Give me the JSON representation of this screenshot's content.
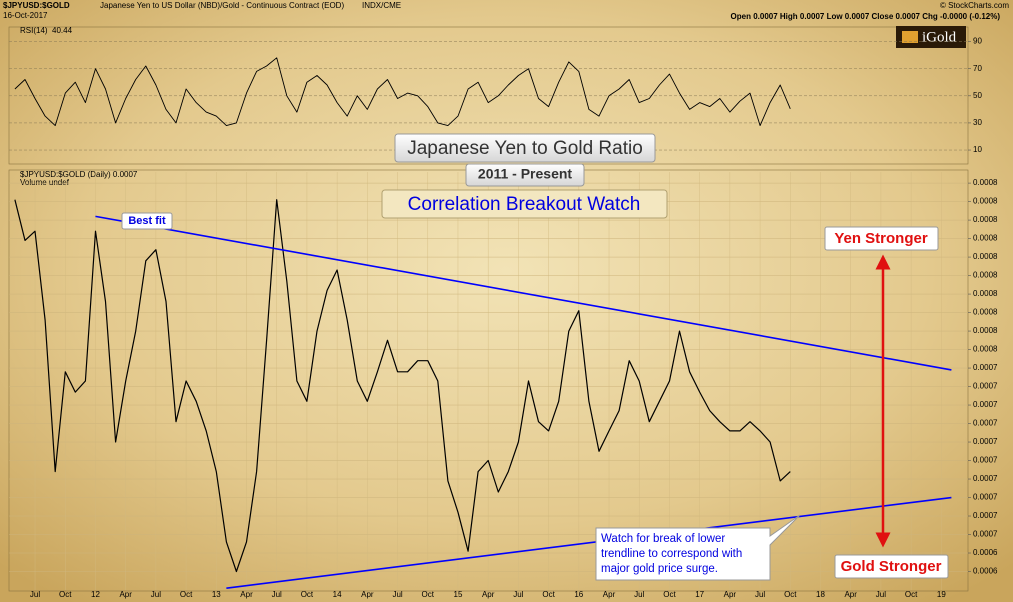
{
  "header": {
    "symbol": "$JPYUSD:$GOLD",
    "description": "Japanese Yen to US Dollar (NBD)/Gold - Continuous Contract (EOD)",
    "exchange": "INDX/CME",
    "date": "16-Oct-2017",
    "quote": "Open 0.0007  High 0.0007  Low 0.0007  Close 0.0007  Chg -0.0000 (-0.12%)",
    "credit": "© StockCharts.com",
    "logo": "iGold"
  },
  "chart_data": [
    {
      "type": "line",
      "title": "RSI(14)",
      "x": [
        "2011-05",
        "2011-06",
        "2011-07",
        "2011-08",
        "2011-09",
        "2011-10",
        "2011-11",
        "2011-12",
        "2012-01",
        "2012-02",
        "2012-03",
        "2012-04",
        "2012-05",
        "2012-06",
        "2012-07",
        "2012-08",
        "2012-09",
        "2012-10",
        "2012-11",
        "2012-12",
        "2013-01",
        "2013-02",
        "2013-03",
        "2013-04",
        "2013-05",
        "2013-06",
        "2013-07",
        "2013-08",
        "2013-09",
        "2013-10",
        "2013-11",
        "2013-12",
        "2014-01",
        "2014-02",
        "2014-03",
        "2014-04",
        "2014-05",
        "2014-06",
        "2014-07",
        "2014-08",
        "2014-09",
        "2014-10",
        "2014-11",
        "2014-12",
        "2015-01",
        "2015-02",
        "2015-03",
        "2015-04",
        "2015-05",
        "2015-06",
        "2015-07",
        "2015-08",
        "2015-09",
        "2015-10",
        "2015-11",
        "2015-12",
        "2016-01",
        "2016-02",
        "2016-03",
        "2016-04",
        "2016-05",
        "2016-06",
        "2016-07",
        "2016-08",
        "2016-09",
        "2016-10",
        "2016-11",
        "2016-12",
        "2017-01",
        "2017-02",
        "2017-03",
        "2017-04",
        "2017-05",
        "2017-06",
        "2017-07",
        "2017-08",
        "2017-09",
        "2017-10"
      ],
      "values": [
        55,
        62,
        48,
        35,
        28,
        52,
        60,
        45,
        70,
        55,
        30,
        48,
        62,
        72,
        58,
        40,
        30,
        55,
        45,
        38,
        35,
        28,
        30,
        52,
        68,
        72,
        78,
        50,
        38,
        60,
        65,
        58,
        45,
        35,
        50,
        40,
        55,
        62,
        48,
        52,
        50,
        42,
        30,
        28,
        35,
        55,
        60,
        45,
        50,
        58,
        65,
        70,
        48,
        42,
        60,
        75,
        68,
        40,
        35,
        50,
        55,
        62,
        45,
        48,
        58,
        66,
        52,
        40,
        45,
        42,
        48,
        38,
        46,
        52,
        28,
        45,
        58,
        40.44
      ],
      "color": "#000000",
      "ylim": [
        0,
        100
      ],
      "yticks": [
        10,
        30,
        50,
        70,
        90
      ],
      "grid": true
    },
    {
      "type": "line",
      "title": "$JPYUSD:$GOLD (Daily) 0.0007",
      "subtitle": "Volume undef",
      "x": [
        "2011-05",
        "2011-06",
        "2011-07",
        "2011-08",
        "2011-09",
        "2011-10",
        "2011-11",
        "2011-12",
        "2012-01",
        "2012-02",
        "2012-03",
        "2012-04",
        "2012-05",
        "2012-06",
        "2012-07",
        "2012-08",
        "2012-09",
        "2012-10",
        "2012-11",
        "2012-12",
        "2013-01",
        "2013-02",
        "2013-03",
        "2013-04",
        "2013-05",
        "2013-06",
        "2013-07",
        "2013-08",
        "2013-09",
        "2013-10",
        "2013-11",
        "2013-12",
        "2014-01",
        "2014-02",
        "2014-03",
        "2014-04",
        "2014-05",
        "2014-06",
        "2014-07",
        "2014-08",
        "2014-09",
        "2014-10",
        "2014-11",
        "2014-12",
        "2015-01",
        "2015-02",
        "2015-03",
        "2015-04",
        "2015-05",
        "2015-06",
        "2015-07",
        "2015-08",
        "2015-09",
        "2015-10",
        "2015-11",
        "2015-12",
        "2016-01",
        "2016-02",
        "2016-03",
        "2016-04",
        "2016-05",
        "2016-06",
        "2016-07",
        "2016-08",
        "2016-09",
        "2016-10",
        "2016-11",
        "2016-12",
        "2017-01",
        "2017-02",
        "2017-03",
        "2017-04",
        "2017-05",
        "2017-06",
        "2017-07",
        "2017-08",
        "2017-09",
        "2017-10"
      ],
      "values": [
        0.000836,
        0.000814,
        0.000819,
        0.000771,
        0.000689,
        0.000743,
        0.000732,
        0.000738,
        0.000819,
        0.000781,
        0.000705,
        0.000738,
        0.000765,
        0.000803,
        0.000809,
        0.000781,
        0.000716,
        0.000738,
        0.000727,
        0.000711,
        0.000689,
        0.000651,
        0.000635,
        0.000651,
        0.000689,
        0.00076,
        0.000836,
        0.000792,
        0.000738,
        0.000727,
        0.000765,
        0.000787,
        0.000798,
        0.000771,
        0.000738,
        0.000727,
        0.000743,
        0.00076,
        0.000743,
        0.000743,
        0.000749,
        0.000749,
        0.000738,
        0.000684,
        0.000667,
        0.000646,
        0.000689,
        0.000695,
        0.000678,
        0.000689,
        0.000705,
        0.000738,
        0.000716,
        0.000711,
        0.000727,
        0.000765,
        0.000776,
        0.000727,
        0.0007,
        0.000711,
        0.000722,
        0.000749,
        0.000738,
        0.000716,
        0.000727,
        0.000738,
        0.000765,
        0.000743,
        0.000732,
        0.000722,
        0.000716,
        0.000711,
        0.000711,
        0.000716,
        0.000711,
        0.000705,
        0.000684,
        0.000689
      ],
      "color": "#000000",
      "ylim": [
        0.000625,
        0.000851
      ],
      "yticks": [
        {
          "value": 0.000845,
          "label": "0.0008"
        },
        {
          "value": 0.000835,
          "label": "0.0008"
        },
        {
          "value": 0.000825,
          "label": "0.0008"
        },
        {
          "value": 0.000815,
          "label": "0.0008"
        },
        {
          "value": 0.000805,
          "label": "0.0008"
        },
        {
          "value": 0.000795,
          "label": "0.0008"
        },
        {
          "value": 0.000785,
          "label": "0.0008"
        },
        {
          "value": 0.000775,
          "label": "0.0008"
        },
        {
          "value": 0.000765,
          "label": "0.0008"
        },
        {
          "value": 0.000755,
          "label": "0.0008"
        },
        {
          "value": 0.000745,
          "label": "0.0007"
        },
        {
          "value": 0.000735,
          "label": "0.0007"
        },
        {
          "value": 0.000725,
          "label": "0.0007"
        },
        {
          "value": 0.000715,
          "label": "0.0007"
        },
        {
          "value": 0.000705,
          "label": "0.0007"
        },
        {
          "value": 0.000695,
          "label": "0.0007"
        },
        {
          "value": 0.000685,
          "label": "0.0007"
        },
        {
          "value": 0.000675,
          "label": "0.0007"
        },
        {
          "value": 0.000665,
          "label": "0.0007"
        },
        {
          "value": 0.000655,
          "label": "0.0007"
        },
        {
          "value": 0.000645,
          "label": "0.0006"
        },
        {
          "value": 0.000635,
          "label": "0.0006"
        }
      ],
      "xticks": [
        {
          "value": "2011-07",
          "label": "Jul"
        },
        {
          "value": "2011-10",
          "label": "Oct"
        },
        {
          "value": "2012-01",
          "label": "12"
        },
        {
          "value": "2012-04",
          "label": "Apr"
        },
        {
          "value": "2012-07",
          "label": "Jul"
        },
        {
          "value": "2012-10",
          "label": "Oct"
        },
        {
          "value": "2013-01",
          "label": "13"
        },
        {
          "value": "2013-04",
          "label": "Apr"
        },
        {
          "value": "2013-07",
          "label": "Jul"
        },
        {
          "value": "2013-10",
          "label": "Oct"
        },
        {
          "value": "2014-01",
          "label": "14"
        },
        {
          "value": "2014-04",
          "label": "Apr"
        },
        {
          "value": "2014-07",
          "label": "Jul"
        },
        {
          "value": "2014-10",
          "label": "Oct"
        },
        {
          "value": "2015-01",
          "label": "15"
        },
        {
          "value": "2015-04",
          "label": "Apr"
        },
        {
          "value": "2015-07",
          "label": "Jul"
        },
        {
          "value": "2015-10",
          "label": "Oct"
        },
        {
          "value": "2016-01",
          "label": "16"
        },
        {
          "value": "2016-04",
          "label": "Apr"
        },
        {
          "value": "2016-07",
          "label": "Jul"
        },
        {
          "value": "2016-10",
          "label": "Oct"
        },
        {
          "value": "2017-01",
          "label": "17"
        },
        {
          "value": "2017-04",
          "label": "Apr"
        },
        {
          "value": "2017-07",
          "label": "Jul"
        },
        {
          "value": "2017-10",
          "label": "Oct"
        },
        {
          "value": "2018-01",
          "label": "18"
        },
        {
          "value": "2018-04",
          "label": "Apr"
        },
        {
          "value": "2018-07",
          "label": "Jul"
        },
        {
          "value": "2018-10",
          "label": "Oct"
        },
        {
          "value": "2019-01",
          "label": "19"
        }
      ],
      "grid": true,
      "trendlines": [
        {
          "x": [
            "2012-01",
            "2019-02"
          ],
          "values": [
            0.000827,
            0.000744
          ],
          "color": "#0000ff"
        },
        {
          "x": [
            "2013-02",
            "2019-02"
          ],
          "values": [
            0.000626,
            0.000675
          ],
          "color": "#0000ff"
        }
      ],
      "annotations": [
        "Japanese Yen to Gold Ratio",
        "2011 - Present",
        "Correlation Breakout Watch",
        "Best fit",
        "Yen Stronger",
        "Gold Stronger",
        [
          "Watch for break of lower",
          "trendline to correspond with",
          "major gold price surge."
        ]
      ]
    }
  ]
}
